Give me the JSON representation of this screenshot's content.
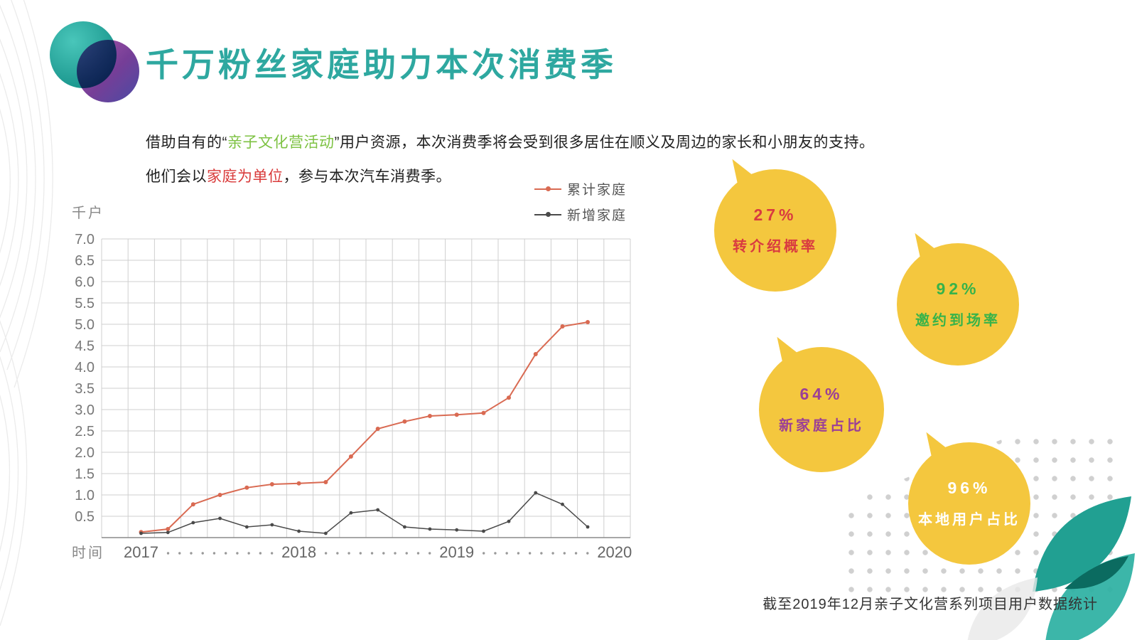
{
  "title": "千万粉丝家庭助力本次消费季",
  "paragraphs": {
    "p1_pre": "借助自有的“",
    "p1_highlight": "亲子文化营活动",
    "p1_post": "”用户资源，本次消费季将会受到很多居住在顺义及周边的家长和小朋友的支持。",
    "p2_pre": "他们会以",
    "p2_highlight": "家庭为单位",
    "p2_post": "，参与本次汽车消费季。"
  },
  "footer": "截至2019年12月亲子文化营系列项目用户数据统计",
  "colors": {
    "title_teal": "#2ea8a0",
    "highlight_green": "#7dc242",
    "highlight_red": "#d93a3a",
    "bubble_yellow": "#f4c73e"
  },
  "stats": [
    {
      "value": "27%",
      "label": "转介绍概率",
      "color": "#d93a40"
    },
    {
      "value": "92%",
      "label": "邀约到场率",
      "color": "#37b34a"
    },
    {
      "value": "64%",
      "label": "新家庭占比",
      "color": "#9b3f97"
    },
    {
      "value": "96%",
      "label": "本地用户占比",
      "color": "#ffffff"
    }
  ],
  "chart_data": {
    "type": "line",
    "title": "",
    "ylabel": "千户",
    "xlabel": "时间",
    "ylim": [
      0,
      7.0
    ],
    "y_ticks": [
      0.5,
      1.0,
      1.5,
      2.0,
      2.5,
      3.0,
      3.5,
      4.0,
      4.5,
      5.0,
      5.5,
      6.0,
      6.5,
      7.0
    ],
    "x_ticks": [
      "2017",
      "2018",
      "2019",
      "2020"
    ],
    "x_tick_years": [
      2017,
      2018,
      2019,
      2020
    ],
    "x_range": [
      2016.75,
      2020.1
    ],
    "grid": true,
    "legend_position": "top-right",
    "series": [
      {
        "name": "累计家庭",
        "color": "#d96a52",
        "x": [
          2017.0,
          2017.17,
          2017.33,
          2017.5,
          2017.67,
          2017.83,
          2018.0,
          2018.17,
          2018.33,
          2018.5,
          2018.67,
          2018.83,
          2019.0,
          2019.17,
          2019.33,
          2019.5,
          2019.67,
          2019.83
        ],
        "values": [
          0.13,
          0.2,
          0.78,
          1.0,
          1.17,
          1.25,
          1.27,
          1.3,
          1.9,
          2.55,
          2.72,
          2.85,
          2.88,
          2.92,
          3.28,
          4.3,
          4.95,
          5.05
        ]
      },
      {
        "name": "新增家庭",
        "color": "#4a4a4a",
        "x": [
          2017.0,
          2017.17,
          2017.33,
          2017.5,
          2017.67,
          2017.83,
          2018.0,
          2018.17,
          2018.33,
          2018.5,
          2018.67,
          2018.83,
          2019.0,
          2019.17,
          2019.33,
          2019.5,
          2019.67,
          2019.83
        ],
        "values": [
          0.1,
          0.12,
          0.35,
          0.45,
          0.25,
          0.3,
          0.15,
          0.1,
          0.58,
          0.65,
          0.25,
          0.2,
          0.18,
          0.15,
          0.38,
          1.05,
          0.78,
          0.25
        ]
      }
    ]
  }
}
